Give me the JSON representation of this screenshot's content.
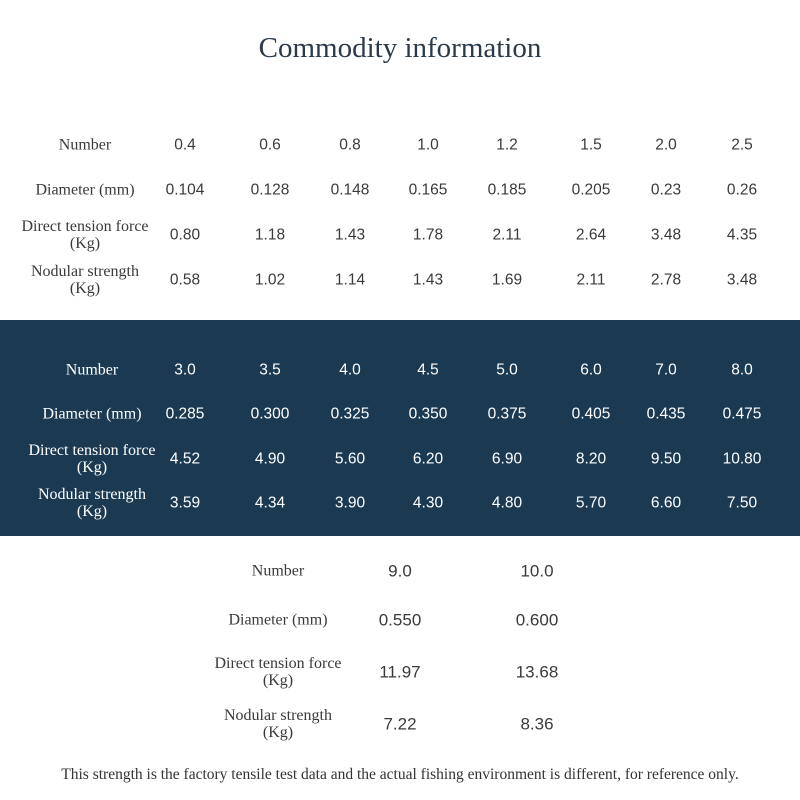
{
  "title": "Commodity information",
  "tables": [
    {
      "rows": [
        [
          "Number",
          "0.4",
          "0.6",
          "0.8",
          "1.0",
          "1.2",
          "1.5",
          "2.0",
          "2.5"
        ],
        [
          "Diameter (mm)",
          "0.104",
          "0.128",
          "0.148",
          "0.165",
          "0.185",
          "0.205",
          "0.23",
          "0.26"
        ],
        [
          "Direct tension force (Kg)",
          "0.80",
          "1.18",
          "1.43",
          "1.78",
          "2.11",
          "2.64",
          "3.48",
          "4.35"
        ],
        [
          "Nodular strength (Kg)",
          "0.58",
          "1.02",
          "1.14",
          "1.43",
          "1.69",
          "2.11",
          "2.78",
          "3.48"
        ]
      ]
    },
    {
      "rows": [
        [
          "Number",
          "3.0",
          "3.5",
          "4.0",
          "4.5",
          "5.0",
          "6.0",
          "7.0",
          "8.0"
        ],
        [
          "Diameter (mm)",
          "0.285",
          "0.300",
          "0.325",
          "0.350",
          "0.375",
          "0.405",
          "0.435",
          "0.475"
        ],
        [
          "Direct tension force (Kg)",
          "4.52",
          "4.90",
          "5.60",
          "6.20",
          "6.90",
          "8.20",
          "9.50",
          "10.80"
        ],
        [
          "Nodular strength (Kg)",
          "3.59",
          "4.34",
          "3.90",
          "4.30",
          "4.80",
          "5.70",
          "6.60",
          "7.50"
        ]
      ]
    },
    {
      "rows": [
        [
          "Number",
          "9.0",
          "10.0"
        ],
        [
          "Diameter (mm)",
          "0.550",
          "0.600"
        ],
        [
          "Direct tension force (Kg)",
          "11.97",
          "13.68"
        ],
        [
          "Nodular strength (Kg)",
          "7.22",
          "8.36"
        ]
      ]
    }
  ],
  "footnote": "This strength is the factory tensile test data and the actual fishing environment is different, for reference only."
}
